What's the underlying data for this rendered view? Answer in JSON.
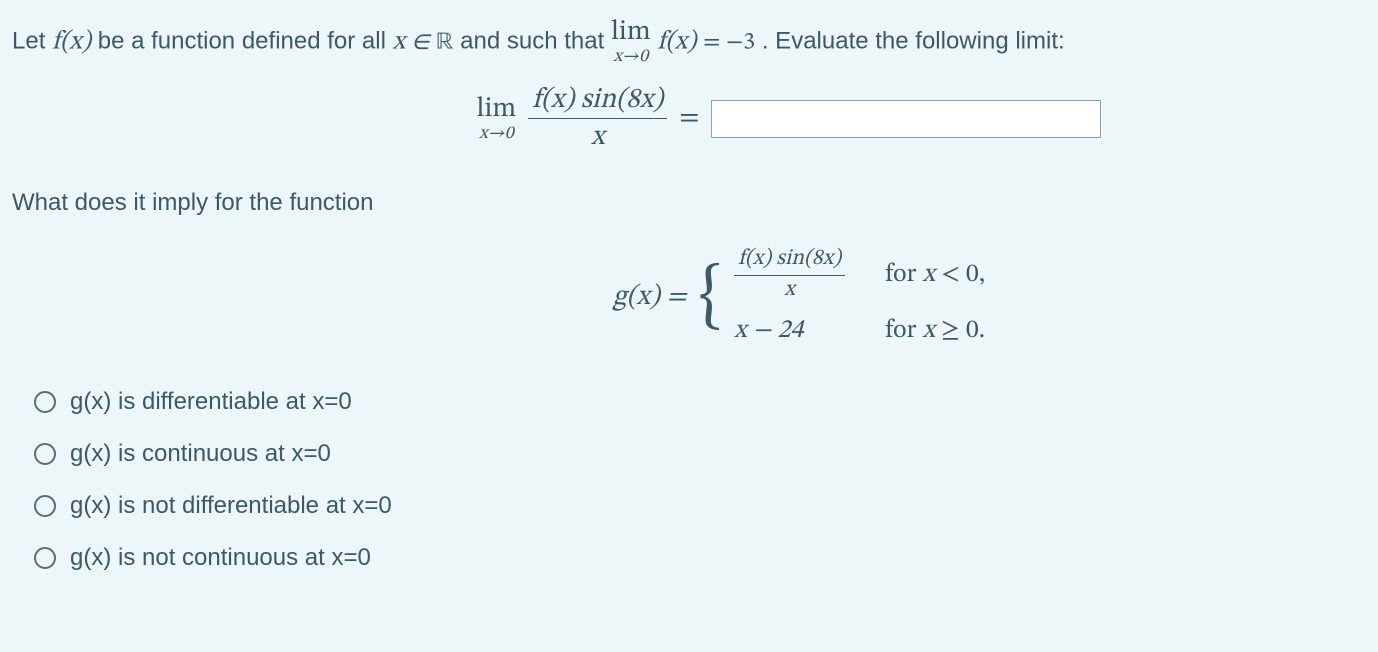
{
  "problem": {
    "intro_prefix": "Let ",
    "f_of_x": "f(x)",
    "intro_mid": " be a function defined for all ",
    "x_in": "x ∈ ",
    "real": "ℝ",
    "intro_after_R": " and such that ",
    "lim_top": "lim",
    "lim_bot": "x→0",
    "given_limit_rhs": " = −3",
    "intro_tail": ". Evaluate the following limit:",
    "frac_num": "f(x) sin(8x)",
    "frac_den": "x",
    "equals": "="
  },
  "q2": {
    "prompt": "What does it imply for the function",
    "g_label": "g(x) = ",
    "case1_expr_num": "f(x) sin(8x)",
    "case1_expr_den": "x",
    "case1_cond": "for x < 0,",
    "case2_expr": "x − 24",
    "case2_cond": "for x ≥ 0."
  },
  "options": [
    "g(x) is differentiable at x=0",
    "g(x) is continuous at x=0",
    "g(x) is not differentiable at x=0",
    "g(x) is not continuous at x=0"
  ],
  "colors": {
    "background": "#edf6f8",
    "text": "#3c5967",
    "input_border": "#8aa0ab",
    "radio_border": "#5b6e78"
  }
}
